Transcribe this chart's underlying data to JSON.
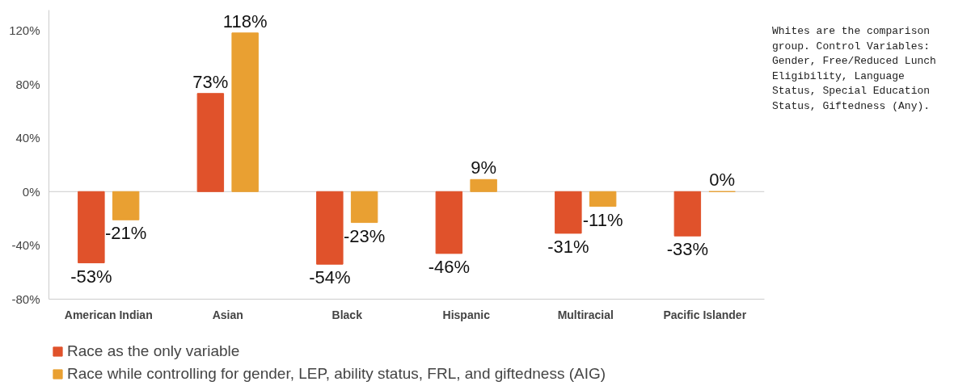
{
  "chart_data": {
    "type": "bar",
    "categories": [
      "American Indian",
      "Asian",
      "Black",
      "Hispanic",
      "Multiracial",
      "Pacific Islander"
    ],
    "series": [
      {
        "name": "Race as the only variable",
        "color": "#e0522b",
        "values": [
          -53,
          73,
          -54,
          -46,
          -31,
          -33
        ],
        "value_labels": [
          "-53%",
          "73%",
          "-54%",
          "-46%",
          "-31%",
          "-33%"
        ]
      },
      {
        "name": "Race while controlling for gender, LEP, ability status, FRL, and giftedness (AIG)",
        "color": "#e9a032",
        "values": [
          -21,
          118,
          -23,
          9,
          -11,
          0
        ],
        "value_labels": [
          "-21%",
          "118%",
          "-23%",
          "9%",
          "-11%",
          "0%"
        ]
      }
    ],
    "ylim": [
      -80,
      135
    ],
    "yticks": [
      {
        "value": -80,
        "label": "-80%"
      },
      {
        "value": -40,
        "label": "-40%"
      },
      {
        "value": 0,
        "label": "0%"
      },
      {
        "value": 40,
        "label": "40%"
      },
      {
        "value": 80,
        "label": "80%"
      },
      {
        "value": 120,
        "label": "120%"
      }
    ],
    "ref_lines": [
      {
        "axis": "y",
        "value": 0,
        "color": "#cccccc"
      }
    ],
    "annotations": [
      "Whites are the comparison group. Control Variables: Gender, Free/Reduced Lunch Eligibility, Language Status, Special Education Status, Giftedness (Any)."
    ],
    "grid": false,
    "legend": "bottom"
  }
}
